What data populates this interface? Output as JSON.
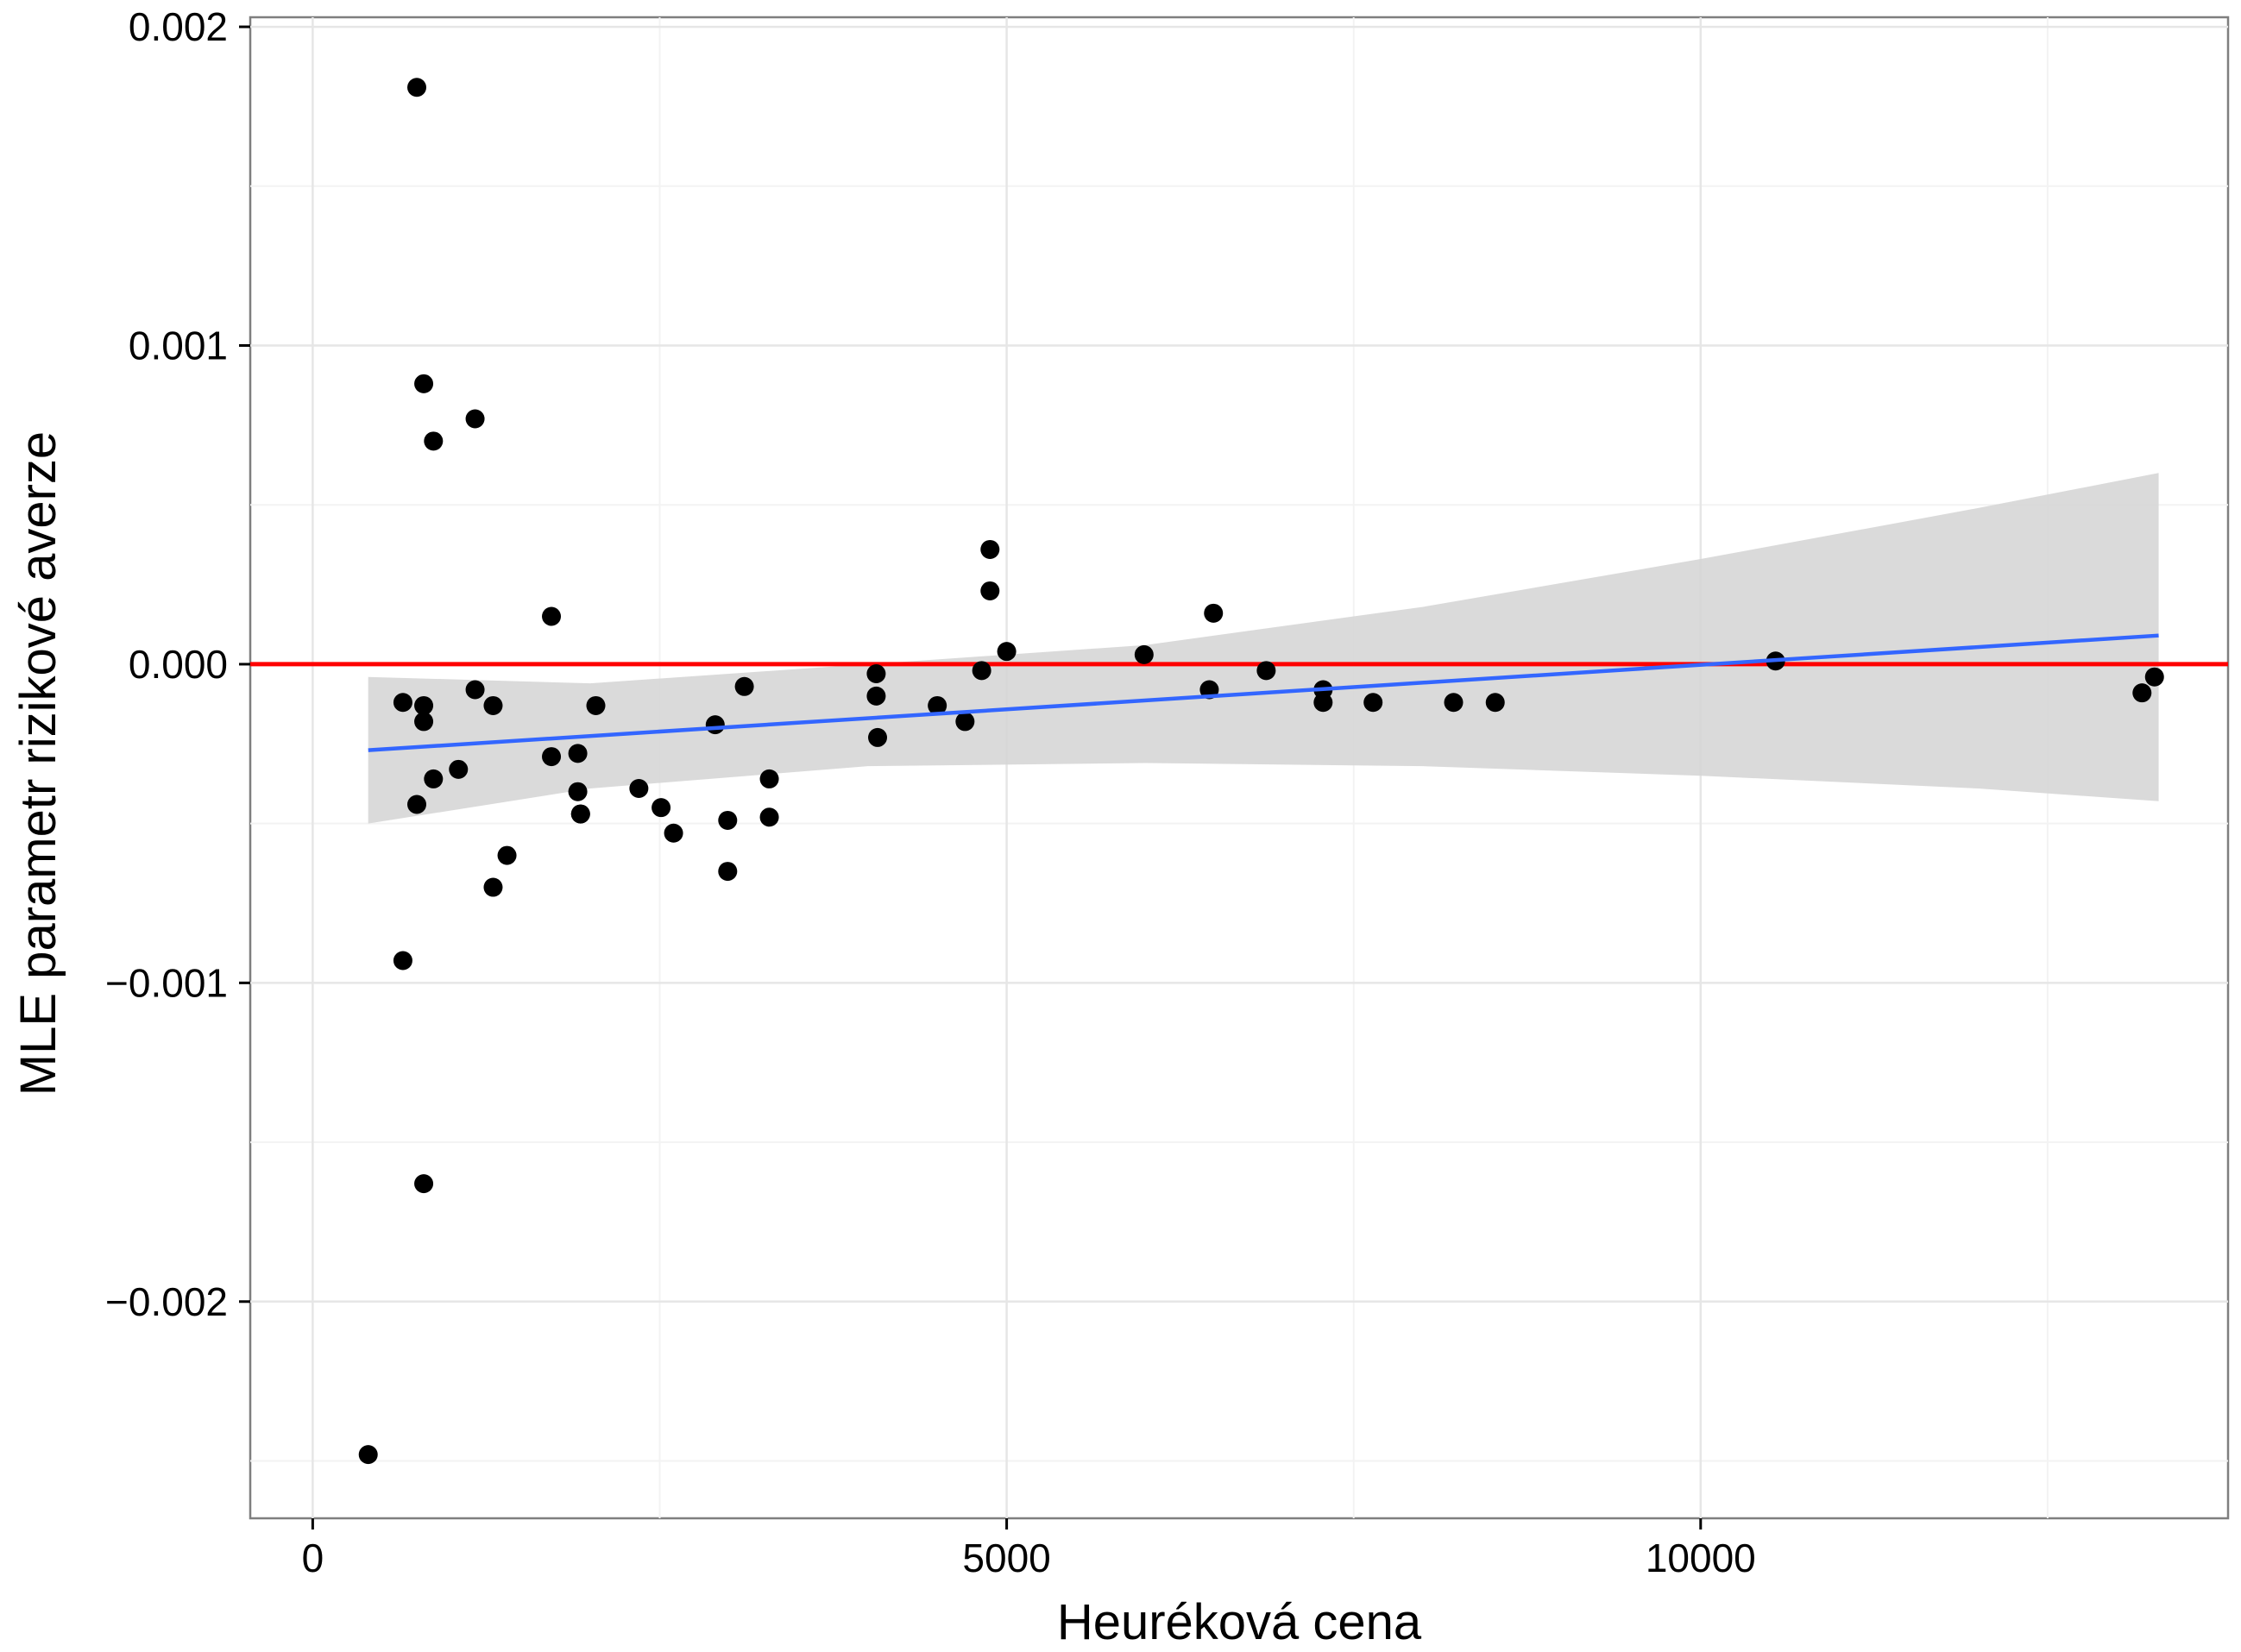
{
  "chart_data": {
    "type": "scatter",
    "title": "",
    "xlabel": "Heuréková cena",
    "ylabel": "MLE parametr rizikové averze",
    "xlim": [
      -450,
      13800
    ],
    "ylim": [
      -0.00268,
      0.00203
    ],
    "x_ticks": [
      0,
      5000,
      10000
    ],
    "x_tick_labels": [
      "0",
      "5000",
      "10000"
    ],
    "y_ticks": [
      0.002,
      0.001,
      0.0,
      -0.001,
      -0.002
    ],
    "y_tick_labels": [
      "0.002",
      "0.001",
      "0.000",
      "−0.001",
      "−0.002"
    ],
    "grid": true,
    "reference_line": {
      "y": 0.0,
      "color": "#ff0000"
    },
    "fit_line": {
      "x": [
        400,
        13300
      ],
      "y": [
        -0.00027,
        9e-05
      ],
      "color": "#3366ff"
    },
    "confidence_band": {
      "x": [
        400,
        2000,
        4000,
        6000,
        8000,
        10000,
        12000,
        13300
      ],
      "lower": [
        -0.0005,
        -0.00039,
        -0.00032,
        -0.00031,
        -0.00032,
        -0.00035,
        -0.00039,
        -0.00043
      ],
      "upper": [
        -4e-05,
        -6e-05,
        0.0,
        6e-05,
        0.00018,
        0.00033,
        0.00049,
        0.0006
      ],
      "color": "#d4d4d4"
    },
    "points": {
      "x": [
        400,
        650,
        650,
        750,
        750,
        800,
        800,
        800,
        800,
        870,
        870,
        1050,
        1170,
        1170,
        1300,
        1300,
        1400,
        1720,
        1720,
        1910,
        1910,
        1930,
        1930,
        2040,
        2350,
        2510,
        2600,
        2900,
        2990,
        2990,
        3110,
        3290,
        3290,
        4060,
        4060,
        4070,
        4500,
        4700,
        4820,
        4880,
        4880,
        5000,
        5990,
        6460,
        6490,
        6870,
        7280,
        7280,
        7640,
        8220,
        8520,
        10540,
        13180,
        13270
      ],
      "y": [
        -0.00248,
        -0.00093,
        -0.00012,
        0.00181,
        -0.00044,
        0.00088,
        -0.00013,
        -0.00018,
        -0.00163,
        0.0007,
        -0.00036,
        -0.00033,
        0.00077,
        -8e-05,
        -0.00013,
        -0.0007,
        -0.0006,
        0.00015,
        -0.00029,
        -0.00028,
        -0.0004,
        -0.00047,
        -0.00047,
        -0.00013,
        -0.00039,
        -0.00045,
        -0.00053,
        -0.00019,
        -0.00049,
        -0.00065,
        -7e-05,
        -0.00036,
        -0.00048,
        -3e-05,
        -0.0001,
        -0.00023,
        -0.00013,
        -0.00018,
        -2e-05,
        0.00036,
        0.00023,
        4e-05,
        3e-05,
        -8e-05,
        0.00016,
        -2e-05,
        -8e-05,
        -0.00012,
        -0.00012,
        -0.00012,
        -0.00012,
        1e-05,
        -9e-05,
        -4e-05
      ],
      "color": "#000000"
    }
  }
}
